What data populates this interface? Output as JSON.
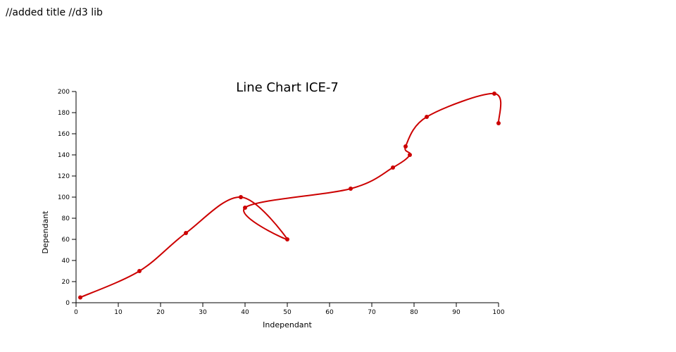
{
  "page": {
    "note": "//added title //d3 lib"
  },
  "chart_data": {
    "type": "line",
    "title": "Line Chart ICE-7",
    "xlabel": "Independant",
    "ylabel": "Dependant",
    "xlim": [
      0,
      100
    ],
    "ylim": [
      0,
      200
    ],
    "xticks": [
      0,
      10,
      20,
      30,
      40,
      50,
      60,
      70,
      80,
      90,
      100
    ],
    "yticks": [
      0,
      20,
      40,
      60,
      80,
      100,
      120,
      140,
      160,
      180,
      200
    ],
    "grid": false,
    "line_color": "#cc0000",
    "series": [
      {
        "points": [
          {
            "x": 1,
            "y": 5
          },
          {
            "x": 15,
            "y": 30
          },
          {
            "x": 26,
            "y": 66
          },
          {
            "x": 39,
            "y": 100
          },
          {
            "x": 50,
            "y": 60
          },
          {
            "x": 40,
            "y": 90
          },
          {
            "x": 65,
            "y": 108
          },
          {
            "x": 75,
            "y": 128
          },
          {
            "x": 79,
            "y": 140
          },
          {
            "x": 78,
            "y": 148
          },
          {
            "x": 83,
            "y": 176
          },
          {
            "x": 99,
            "y": 198
          },
          {
            "x": 100,
            "y": 170
          }
        ]
      }
    ]
  }
}
